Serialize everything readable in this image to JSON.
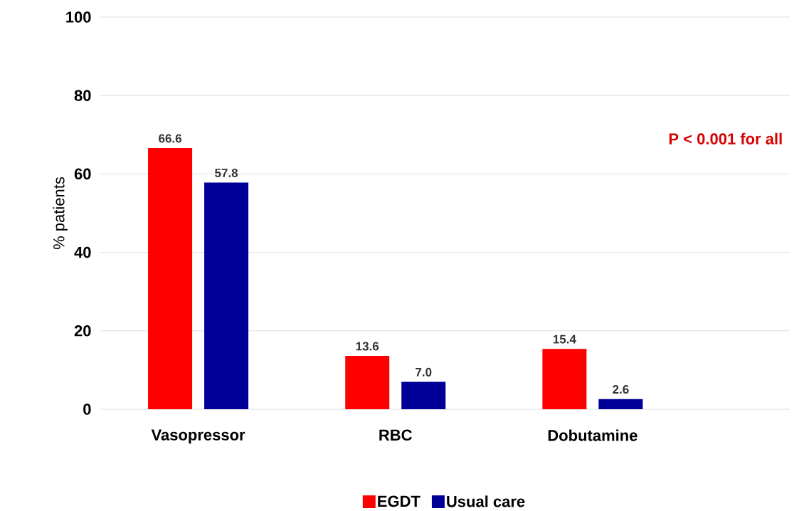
{
  "chart_data": {
    "type": "bar",
    "ylabel": "% patients",
    "categories": [
      "Vasopressor",
      "RBC",
      "Dobutamine"
    ],
    "series": [
      {
        "name": "EGDT",
        "color": "#ff0000",
        "values": [
          66.6,
          13.6,
          15.4
        ],
        "value_labels": [
          "66.6",
          "13.6",
          "15.4"
        ]
      },
      {
        "name": "Usual care",
        "color": "#000099",
        "values": [
          57.8,
          7.0,
          2.6
        ],
        "value_labels": [
          "57.8",
          "7.0",
          "2.6"
        ]
      }
    ],
    "ylim": [
      0,
      100
    ],
    "yticks": [
      0,
      20,
      40,
      60,
      80,
      100
    ],
    "grid": "y",
    "legend": "bottom",
    "annotations": [
      "P < 0.001 for all"
    ]
  }
}
